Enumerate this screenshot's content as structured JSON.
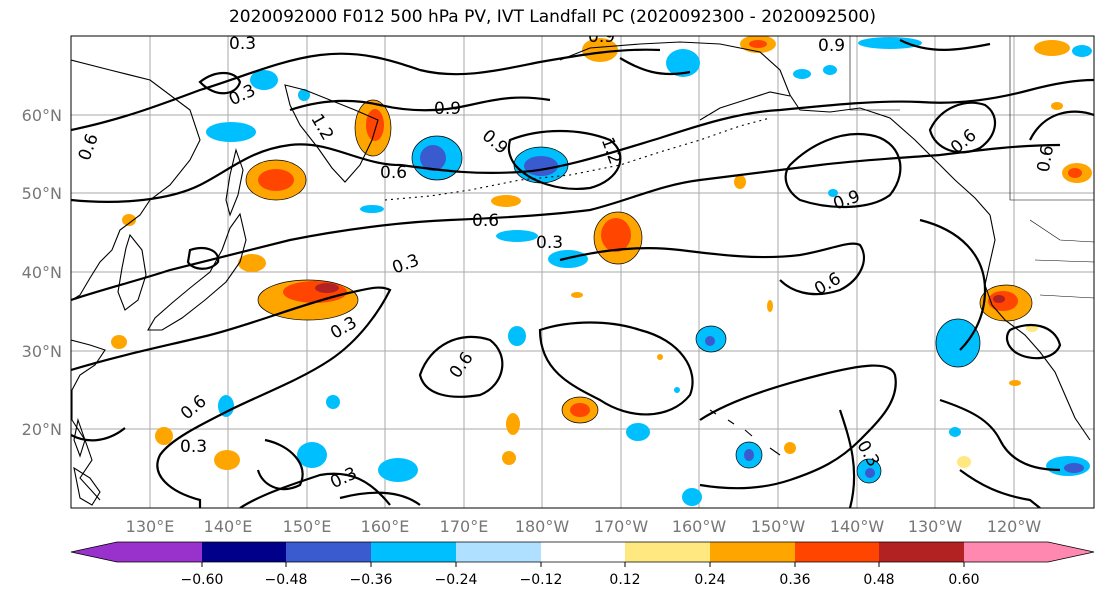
{
  "title": "2020092000 F012 500 hPa PV, IVT Landfall PC (2020092300 - 2020092500)",
  "lat_ticks": [
    "60°N",
    "50°N",
    "40°N",
    "30°N",
    "20°N"
  ],
  "lon_ticks": [
    "130°E",
    "140°E",
    "150°E",
    "160°E",
    "170°E",
    "180°W",
    "170°W",
    "160°W",
    "150°W",
    "140°W",
    "130°W",
    "120°W"
  ],
  "colorbar": {
    "ticks": [
      "−0.60",
      "−0.48",
      "−0.36",
      "−0.24",
      "−0.12",
      "0.12",
      "0.24",
      "0.36",
      "0.48",
      "0.60"
    ],
    "colors": [
      "#9932cc",
      "#00008b",
      "#3a5bd0",
      "#00bfff",
      "#b0e0ff",
      "#ffffff",
      "#ffe880",
      "#ffa500",
      "#ff4500",
      "#b22222",
      "#ff88b0"
    ]
  },
  "contour_labels": [
    "0.3",
    "0.3",
    "0.6",
    "0.9",
    "0.9",
    "0.6",
    "0.6",
    "0.3",
    "0.3",
    "0.6",
    "0.9",
    "0.6",
    "0.3",
    "0.6",
    "0.6",
    "0.3",
    "0.3",
    "0.3",
    "0.6",
    "0.9",
    "0.9",
    "1.2",
    "1.2"
  ],
  "colors": {
    "grid": "#aaaaaa",
    "contour": "#000000",
    "tick_label": "#777777"
  }
}
